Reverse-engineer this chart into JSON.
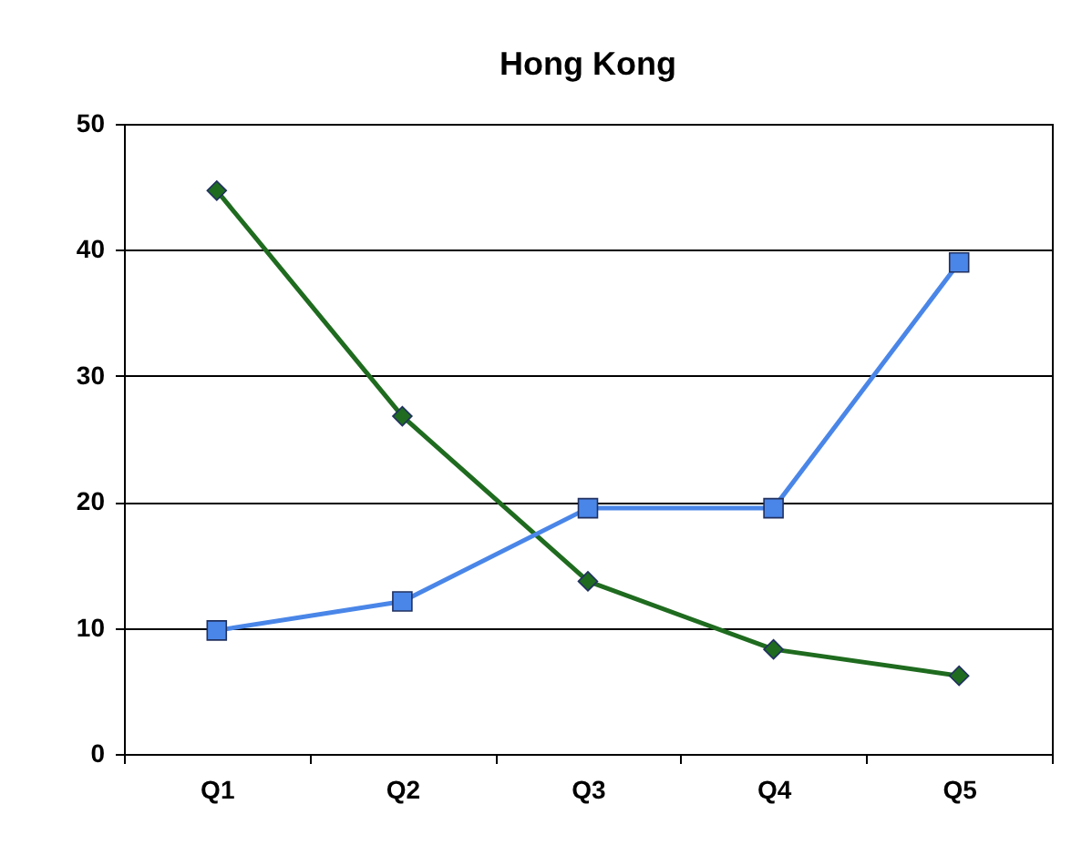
{
  "chart_data": {
    "type": "line",
    "title": "Hong Kong",
    "categories": [
      "Q1",
      "Q2",
      "Q3",
      "Q4",
      "Q5"
    ],
    "series": [
      {
        "color": "#1f6b1f",
        "marker": "diamond",
        "values": [
          44.7,
          26.8,
          13.7,
          8.3,
          6.2
        ]
      },
      {
        "color": "#4a86e8",
        "marker": "square",
        "values": [
          9.8,
          12.1,
          19.5,
          19.5,
          39.0
        ]
      }
    ],
    "ylim": [
      0,
      50
    ],
    "yticks": [
      0,
      10,
      20,
      30,
      40,
      50
    ],
    "grid": "y",
    "line_style": "solid"
  }
}
